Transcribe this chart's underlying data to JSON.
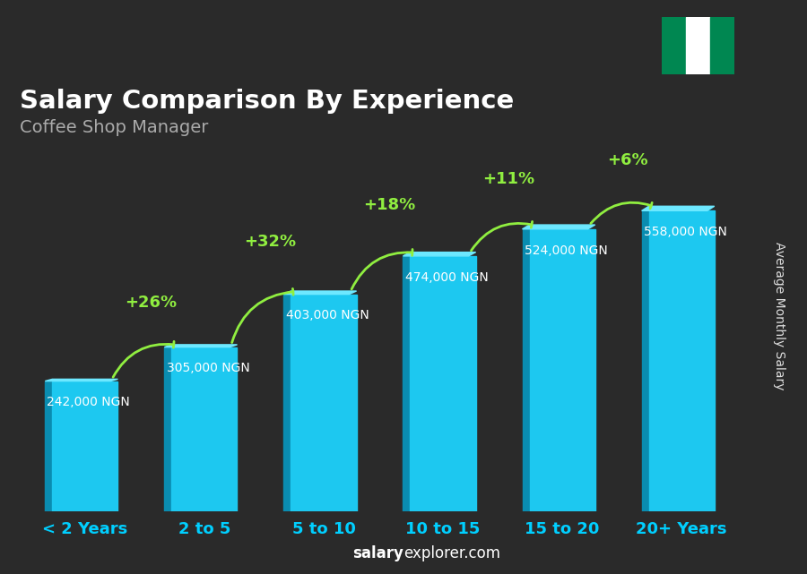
{
  "title": "Salary Comparison By Experience",
  "subtitle": "Coffee Shop Manager",
  "ylabel": "Average Monthly Salary",
  "categories": [
    "< 2 Years",
    "2 to 5",
    "5 to 10",
    "10 to 15",
    "15 to 20",
    "20+ Years"
  ],
  "values": [
    242000,
    305000,
    403000,
    474000,
    524000,
    558000
  ],
  "labels": [
    "242,000 NGN",
    "305,000 NGN",
    "403,000 NGN",
    "474,000 NGN",
    "524,000 NGN",
    "558,000 NGN"
  ],
  "pct_changes": [
    "+26%",
    "+32%",
    "+18%",
    "+11%",
    "+6%"
  ],
  "bar_color_face": "#00BFFF",
  "bar_color_edge": "#0080B0",
  "bar_color_left": "#0090C0",
  "bg_color": "#2a2a2a",
  "title_color": "#FFFFFF",
  "subtitle_color": "#AAAAAA",
  "label_color": "#FFFFFF",
  "pct_color": "#90EE40",
  "tick_color": "#00CFFF",
  "watermark": "salaryexplorer.com",
  "watermark_salary": "salary",
  "watermark_explorer": "explorer",
  "ylim_max": 680000,
  "footer_text": "salaryexplorer.com"
}
